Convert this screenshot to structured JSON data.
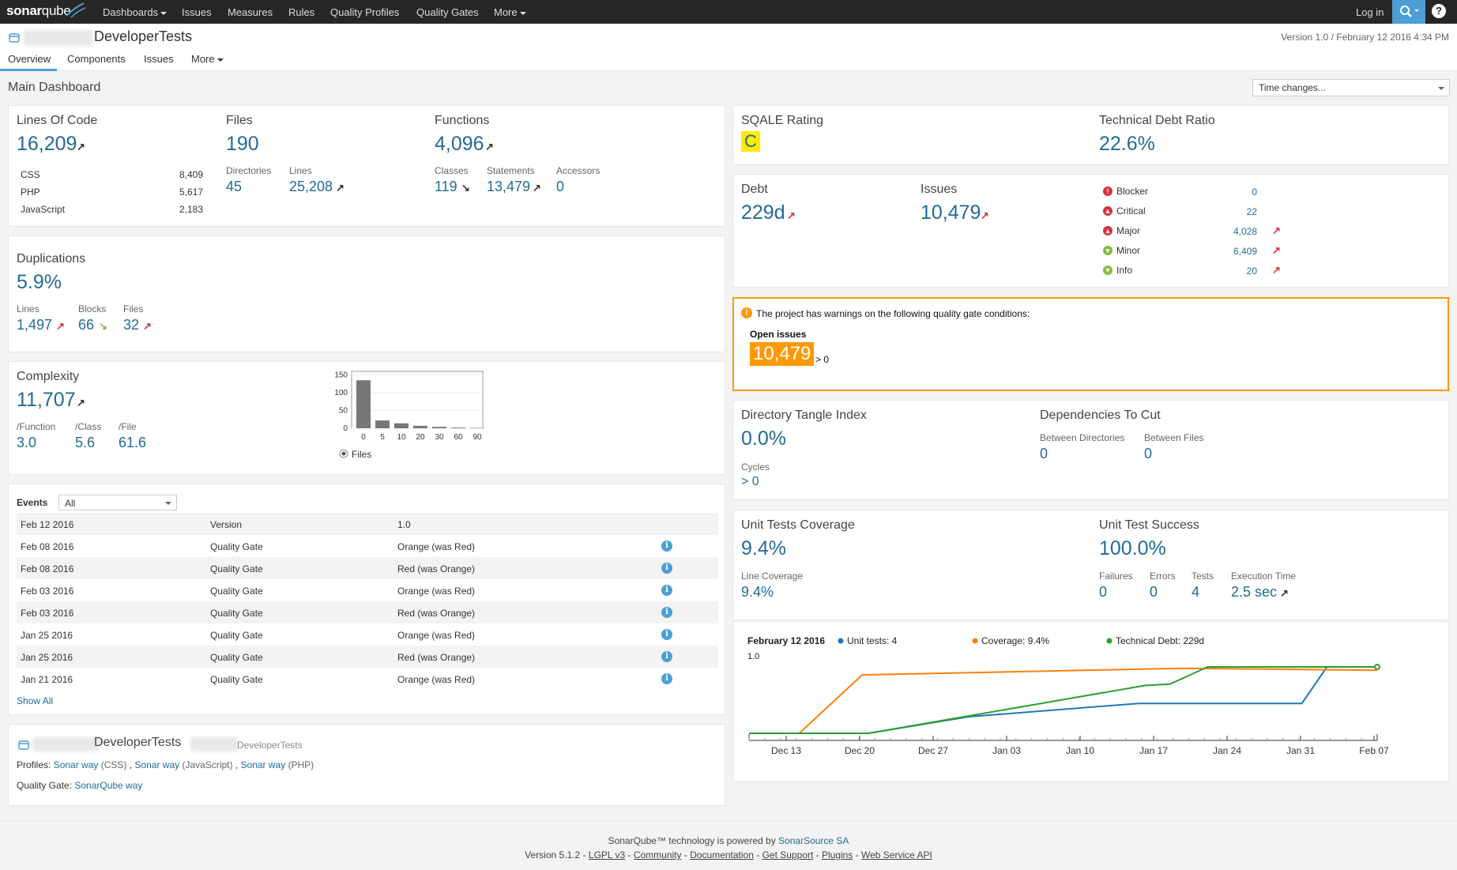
{
  "nav": {
    "logo_text": "sonar",
    "logo_q": "qube",
    "items": [
      "Dashboards",
      "Issues",
      "Measures",
      "Rules",
      "Quality Profiles",
      "Quality Gates",
      "More"
    ],
    "login": "Log in",
    "help": "?"
  },
  "project": {
    "name": "DeveloperTests",
    "version": "Version 1.0 / February 12 2016 4:34 PM",
    "tabs": [
      "Overview",
      "Components",
      "Issues",
      "More"
    ]
  },
  "dashboard": {
    "title": "Main Dashboard",
    "time_changes": "Time changes..."
  },
  "size": {
    "loc_label": "Lines Of Code",
    "loc": "16,209",
    "languages": [
      {
        "name": "CSS",
        "value": "8,409"
      },
      {
        "name": "PHP",
        "value": "5,617"
      },
      {
        "name": "JavaScript",
        "value": "2,183"
      }
    ],
    "files_label": "Files",
    "files": "190",
    "directories_label": "Directories",
    "directories": "45",
    "lines_label": "Lines",
    "lines": "25,208",
    "functions_label": "Functions",
    "functions": "4,096",
    "classes_label": "Classes",
    "classes": "119",
    "statements_label": "Statements",
    "statements": "13,479",
    "accessors_label": "Accessors",
    "accessors": "0"
  },
  "duplications": {
    "label": "Duplications",
    "value": "5.9%",
    "lines_label": "Lines",
    "lines": "1,497",
    "blocks_label": "Blocks",
    "blocks": "66",
    "files_label": "Files",
    "files": "32"
  },
  "complexity": {
    "label": "Complexity",
    "value": "11,707",
    "function_label": "/Function",
    "function": "3.0",
    "class_label": "/Class",
    "class": "5.6",
    "file_label": "/File",
    "file": "61.6",
    "radio_label": "Files"
  },
  "chart_data": [
    {
      "type": "bar",
      "categories": [
        "0",
        "5",
        "10",
        "20",
        "30",
        "60",
        "90"
      ],
      "values": [
        135,
        22,
        14,
        7,
        4,
        2,
        1
      ],
      "yticks": [
        "150",
        "100",
        "50",
        "0"
      ],
      "ylim": [
        0,
        160
      ]
    },
    {
      "type": "line",
      "title": "February 12 2016",
      "ylabel": "1.0",
      "x": [
        "Dec 13",
        "Dec 20",
        "Dec 27",
        "Jan 03",
        "Jan 10",
        "Jan 17",
        "Jan 24",
        "Jan 31",
        "Feb 07"
      ],
      "series": [
        {
          "name": "Unit tests: 4",
          "color": "#1f77b4",
          "points": [
            [
              0,
              0
            ],
            [
              0.19,
              0
            ],
            [
              0.35,
              0.25
            ],
            [
              0.62,
              0.45
            ],
            [
              0.88,
              0.45
            ],
            [
              0.92,
              1
            ],
            [
              1,
              1
            ]
          ]
        },
        {
          "name": "Coverage: 9.4%",
          "color": "#ff7f0e",
          "points": [
            [
              0,
              0
            ],
            [
              0.08,
              0
            ],
            [
              0.18,
              0.88
            ],
            [
              0.69,
              0.98
            ],
            [
              1,
              0.95
            ]
          ]
        },
        {
          "name": "Technical Debt: 229d",
          "color": "#2ca02c",
          "points": [
            [
              0,
              0
            ],
            [
              0.19,
              0
            ],
            [
              0.63,
              0.72
            ],
            [
              0.67,
              0.74
            ],
            [
              0.73,
              1
            ],
            [
              1,
              1
            ]
          ]
        }
      ]
    }
  ],
  "events": {
    "label": "Events",
    "filter": "All",
    "rows": [
      {
        "date": "Feb 12 2016",
        "cat": "Version",
        "desc": "1.0",
        "info": false
      },
      {
        "date": "Feb 08 2016",
        "cat": "Quality Gate",
        "desc": "Orange (was Red)",
        "info": true
      },
      {
        "date": "Feb 08 2016",
        "cat": "Quality Gate",
        "desc": "Red (was Orange)",
        "info": true
      },
      {
        "date": "Feb 03 2016",
        "cat": "Quality Gate",
        "desc": "Orange (was Red)",
        "info": true
      },
      {
        "date": "Feb 03 2016",
        "cat": "Quality Gate",
        "desc": "Red (was Orange)",
        "info": true
      },
      {
        "date": "Jan 25 2016",
        "cat": "Quality Gate",
        "desc": "Orange (was Red)",
        "info": true
      },
      {
        "date": "Jan 25 2016",
        "cat": "Quality Gate",
        "desc": "Red (was Orange)",
        "info": true
      },
      {
        "date": "Jan 21 2016",
        "cat": "Quality Gate",
        "desc": "Orange (was Red)",
        "info": true
      }
    ],
    "show_all": "Show All"
  },
  "description": {
    "name": "DeveloperTests",
    "key": "DeveloperTests",
    "profiles_label": "Profiles:",
    "profiles": [
      {
        "name": "Sonar way",
        "lang": "(CSS)"
      },
      {
        "name": "Sonar way",
        "lang": "(JavaScript)"
      },
      {
        "name": "Sonar way",
        "lang": "(PHP)"
      }
    ],
    "qg_label": "Quality Gate:",
    "qg": "SonarQube way"
  },
  "sqale": {
    "rating_label": "SQALE Rating",
    "rating": "C",
    "ratio_label": "Technical Debt Ratio",
    "ratio": "22.6%"
  },
  "debt": {
    "label": "Debt",
    "value": "229d",
    "issues_label": "Issues",
    "issues": "10,479",
    "severities": [
      {
        "name": "Blocker",
        "value": "0",
        "color": "#d4333f",
        "glyph": "!"
      },
      {
        "name": "Critical",
        "value": "22",
        "color": "#d4333f",
        "glyph": "▲"
      },
      {
        "name": "Major",
        "value": "4,028",
        "color": "#d4333f",
        "glyph": "▴"
      },
      {
        "name": "Minor",
        "value": "6,409",
        "color": "#85bb43",
        "glyph": "▾"
      },
      {
        "name": "Info",
        "value": "20",
        "color": "#85bb43",
        "glyph": "▼"
      }
    ]
  },
  "quality_gate": {
    "message": "The project has warnings on the following quality gate conditions:",
    "condition": "Open issues",
    "value": "10,479",
    "threshold": "> 0"
  },
  "design": {
    "tangle_label": "Directory Tangle Index",
    "tangle": "0.0%",
    "cycles_label": "Cycles",
    "cycles": "> 0",
    "deps_label": "Dependencies To Cut",
    "between_dirs_label": "Between Directories",
    "between_dirs": "0",
    "between_files_label": "Between Files",
    "between_files": "0"
  },
  "tests": {
    "coverage_label": "Unit Tests Coverage",
    "coverage": "9.4%",
    "line_coverage_label": "Line Coverage",
    "line_coverage": "9.4%",
    "success_label": "Unit Test Success",
    "success": "100.0%",
    "failures_label": "Failures",
    "failures": "0",
    "errors_label": "Errors",
    "errors": "0",
    "tests_label": "Tests",
    "tests": "4",
    "exec_label": "Execution Time",
    "exec": "2.5 sec"
  },
  "footer": {
    "line1": "SonarQube™ technology is powered by",
    "line1_link": "SonarSource SA",
    "version": "Version 5.1.2",
    "links": [
      "LGPL v3",
      "Community",
      "Documentation",
      "Get Support",
      "Plugins",
      "Web Service API"
    ]
  },
  "colors": {
    "accent": "#4b9fd5",
    "link": "#236a97",
    "warn": "#ff9900",
    "rating_c": "#ffea00"
  }
}
